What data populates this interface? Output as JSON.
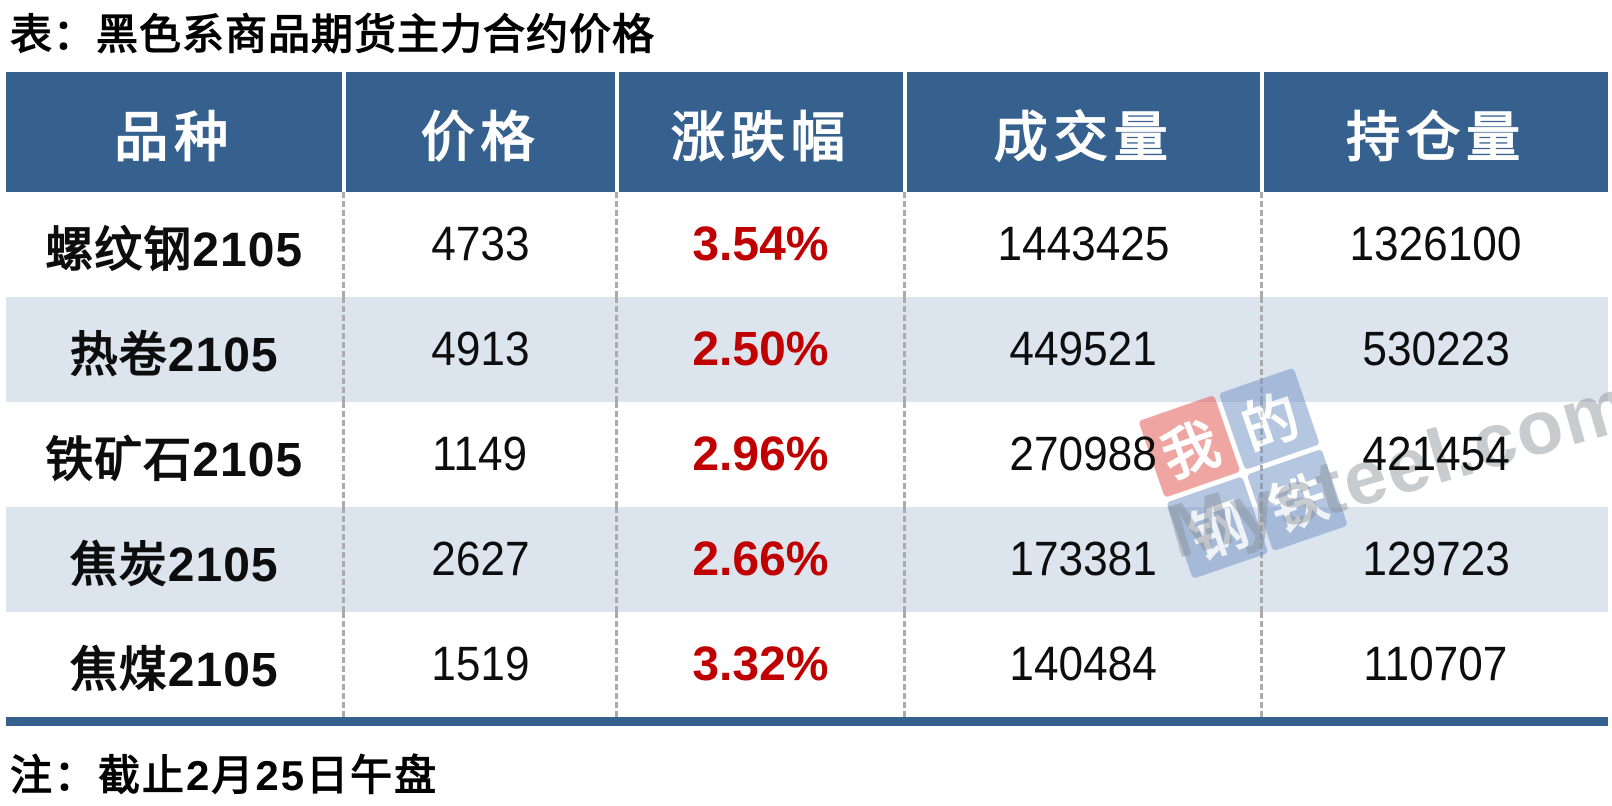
{
  "title": "表：黑色系商品期货主力合约价格",
  "note": "注：截止2月25日午盘",
  "colors": {
    "header_bg": "#36608E",
    "row_alt_bg": "#DCE4EE",
    "change_red": "#C00000",
    "divider_dash": "#ABABAB",
    "bottom_bar": "#36608E",
    "watermark_red": "#E25D55",
    "watermark_blue": "#7798C7"
  },
  "table": {
    "columns": [
      "品种",
      "价格",
      "涨跌幅",
      "成交量",
      "持仓量"
    ],
    "rows": [
      {
        "name": "螺纹钢2105",
        "price": "4733",
        "change": "3.54%",
        "volume": "1443425",
        "open_interest": "1326100"
      },
      {
        "name": "热卷2105",
        "price": "4913",
        "change": "2.50%",
        "volume": "449521",
        "open_interest": "530223"
      },
      {
        "name": "铁矿石2105",
        "price": "1149",
        "change": "2.96%",
        "volume": "270988",
        "open_interest": "421454"
      },
      {
        "name": "焦炭2105",
        "price": "2627",
        "change": "2.66%",
        "volume": "173381",
        "open_interest": "129723"
      },
      {
        "name": "焦煤2105",
        "price": "1519",
        "change": "3.32%",
        "volume": "140484",
        "open_interest": "110707"
      }
    ]
  },
  "watermark": {
    "logo_chars": [
      "我",
      "的",
      "钢",
      "铁"
    ],
    "site_text": "Mysteel.com"
  }
}
